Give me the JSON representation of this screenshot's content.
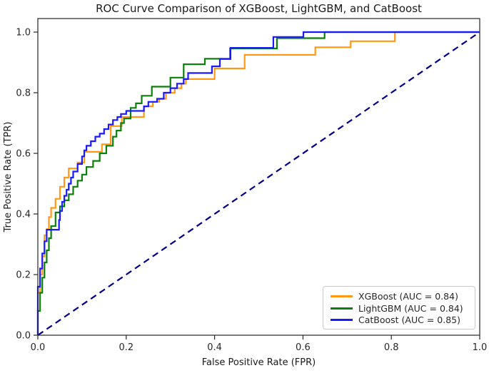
{
  "chart_data": {
    "type": "line",
    "subtype": "roc-step-curves",
    "title": "ROC Curve Comparison of XGBoost, LightGBM, and CatBoost",
    "xlabel": "False Positive Rate (FPR)",
    "ylabel": "True Positive Rate (TPR)",
    "xlim": [
      0.0,
      1.0
    ],
    "ylim": [
      0.0,
      1.045
    ],
    "grid": false,
    "x_tick_labels": [
      "0.0",
      "0.2",
      "0.4",
      "0.6",
      "0.8",
      "1.0"
    ],
    "y_tick_labels": [
      "0.0",
      "0.2",
      "0.4",
      "0.6",
      "0.8",
      "1.0"
    ],
    "axis_color": "#262626",
    "legend": {
      "position": "lower right",
      "entries": [
        {
          "label": "XGBoost (AUC = 0.84)",
          "color": "#ff9914"
        },
        {
          "label": "LightGBM (AUC = 0.84)",
          "color": "#0b800b"
        },
        {
          "label": "CatBoost (AUC = 0.85)",
          "color": "#1a1aff"
        }
      ]
    },
    "series": [
      {
        "name": "XGBoost",
        "auc": 0.84,
        "color": "#ff9914",
        "points": [
          [
            0,
            0
          ],
          [
            0,
            0.07
          ],
          [
            0.005,
            0.14
          ],
          [
            0.01,
            0.2
          ],
          [
            0.015,
            0.26
          ],
          [
            0.02,
            0.33
          ],
          [
            0.025,
            0.35
          ],
          [
            0.03,
            0.39
          ],
          [
            0.04,
            0.42
          ],
          [
            0.05,
            0.45
          ],
          [
            0.06,
            0.49
          ],
          [
            0.07,
            0.52
          ],
          [
            0.09,
            0.55
          ],
          [
            0.105,
            0.57
          ],
          [
            0.115,
            0.605
          ],
          [
            0.145,
            0.605
          ],
          [
            0.145,
            0.63
          ],
          [
            0.165,
            0.63
          ],
          [
            0.165,
            0.69
          ],
          [
            0.19,
            0.69
          ],
          [
            0.19,
            0.72
          ],
          [
            0.24,
            0.72
          ],
          [
            0.24,
            0.75
          ],
          [
            0.26,
            0.755
          ],
          [
            0.275,
            0.77
          ],
          [
            0.29,
            0.78
          ],
          [
            0.31,
            0.8
          ],
          [
            0.325,
            0.815
          ],
          [
            0.335,
            0.83
          ],
          [
            0.345,
            0.845
          ],
          [
            0.4,
            0.845
          ],
          [
            0.4,
            0.86
          ],
          [
            0.42,
            0.88
          ],
          [
            0.468,
            0.88
          ],
          [
            0.468,
            0.925
          ],
          [
            0.628,
            0.925
          ],
          [
            0.628,
            0.95
          ],
          [
            0.708,
            0.95
          ],
          [
            0.708,
            0.97
          ],
          [
            0.808,
            0.97
          ],
          [
            0.808,
            1
          ],
          [
            1,
            1
          ]
        ]
      },
      {
        "name": "LightGBM",
        "auc": 0.84,
        "color": "#0b800b",
        "points": [
          [
            0,
            0
          ],
          [
            0,
            0.03
          ],
          [
            0.005,
            0.08
          ],
          [
            0.01,
            0.14
          ],
          [
            0.015,
            0.19
          ],
          [
            0.02,
            0.24
          ],
          [
            0.025,
            0.28
          ],
          [
            0.03,
            0.32
          ],
          [
            0.04,
            0.36
          ],
          [
            0.05,
            0.405
          ],
          [
            0.06,
            0.425
          ],
          [
            0.07,
            0.445
          ],
          [
            0.08,
            0.465
          ],
          [
            0.09,
            0.49
          ],
          [
            0.1,
            0.51
          ],
          [
            0.11,
            0.53
          ],
          [
            0.125,
            0.555
          ],
          [
            0.14,
            0.575
          ],
          [
            0.155,
            0.6
          ],
          [
            0.17,
            0.625
          ],
          [
            0.178,
            0.655
          ],
          [
            0.188,
            0.675
          ],
          [
            0.195,
            0.7
          ],
          [
            0.21,
            0.715
          ],
          [
            0.222,
            0.75
          ],
          [
            0.235,
            0.765
          ],
          [
            0.24,
            0.79
          ],
          [
            0.258,
            0.79
          ],
          [
            0.258,
            0.82
          ],
          [
            0.3,
            0.82
          ],
          [
            0.3,
            0.85
          ],
          [
            0.33,
            0.85
          ],
          [
            0.33,
            0.894
          ],
          [
            0.378,
            0.894
          ],
          [
            0.378,
            0.912
          ],
          [
            0.435,
            0.912
          ],
          [
            0.435,
            0.946
          ],
          [
            0.541,
            0.946
          ],
          [
            0.541,
            0.98
          ],
          [
            0.649,
            0.98
          ],
          [
            0.649,
            1
          ],
          [
            1,
            1
          ]
        ]
      },
      {
        "name": "CatBoost",
        "auc": 0.85,
        "color": "#1a1aff",
        "points": [
          [
            0,
            0
          ],
          [
            0,
            0.1
          ],
          [
            0.005,
            0.16
          ],
          [
            0.01,
            0.22
          ],
          [
            0.015,
            0.27
          ],
          [
            0.02,
            0.31
          ],
          [
            0.024,
            0.348
          ],
          [
            0.048,
            0.348
          ],
          [
            0.05,
            0.38
          ],
          [
            0.055,
            0.41
          ],
          [
            0.06,
            0.44
          ],
          [
            0.065,
            0.46
          ],
          [
            0.07,
            0.48
          ],
          [
            0.075,
            0.5
          ],
          [
            0.08,
            0.52
          ],
          [
            0.09,
            0.54
          ],
          [
            0.1,
            0.565
          ],
          [
            0.105,
            0.59
          ],
          [
            0.11,
            0.61
          ],
          [
            0.12,
            0.625
          ],
          [
            0.13,
            0.64
          ],
          [
            0.14,
            0.655
          ],
          [
            0.15,
            0.665
          ],
          [
            0.16,
            0.68
          ],
          [
            0.17,
            0.695
          ],
          [
            0.18,
            0.71
          ],
          [
            0.188,
            0.72
          ],
          [
            0.2,
            0.73
          ],
          [
            0.24,
            0.74
          ],
          [
            0.25,
            0.755
          ],
          [
            0.27,
            0.77
          ],
          [
            0.285,
            0.78
          ],
          [
            0.3,
            0.8
          ],
          [
            0.315,
            0.815
          ],
          [
            0.33,
            0.83
          ],
          [
            0.34,
            0.845
          ],
          [
            0.345,
            0.865
          ],
          [
            0.394,
            0.865
          ],
          [
            0.394,
            0.887
          ],
          [
            0.412,
            0.887
          ],
          [
            0.412,
            0.911
          ],
          [
            0.436,
            0.911
          ],
          [
            0.436,
            0.948
          ],
          [
            0.533,
            0.948
          ],
          [
            0.533,
            0.984
          ],
          [
            0.601,
            0.984
          ],
          [
            0.601,
            1
          ],
          [
            1,
            1
          ]
        ]
      }
    ],
    "reference_line": {
      "name": "chance-diagonal",
      "style": "dashed",
      "color": "#00008b",
      "points": [
        [
          0,
          0
        ],
        [
          1,
          1
        ]
      ]
    }
  }
}
